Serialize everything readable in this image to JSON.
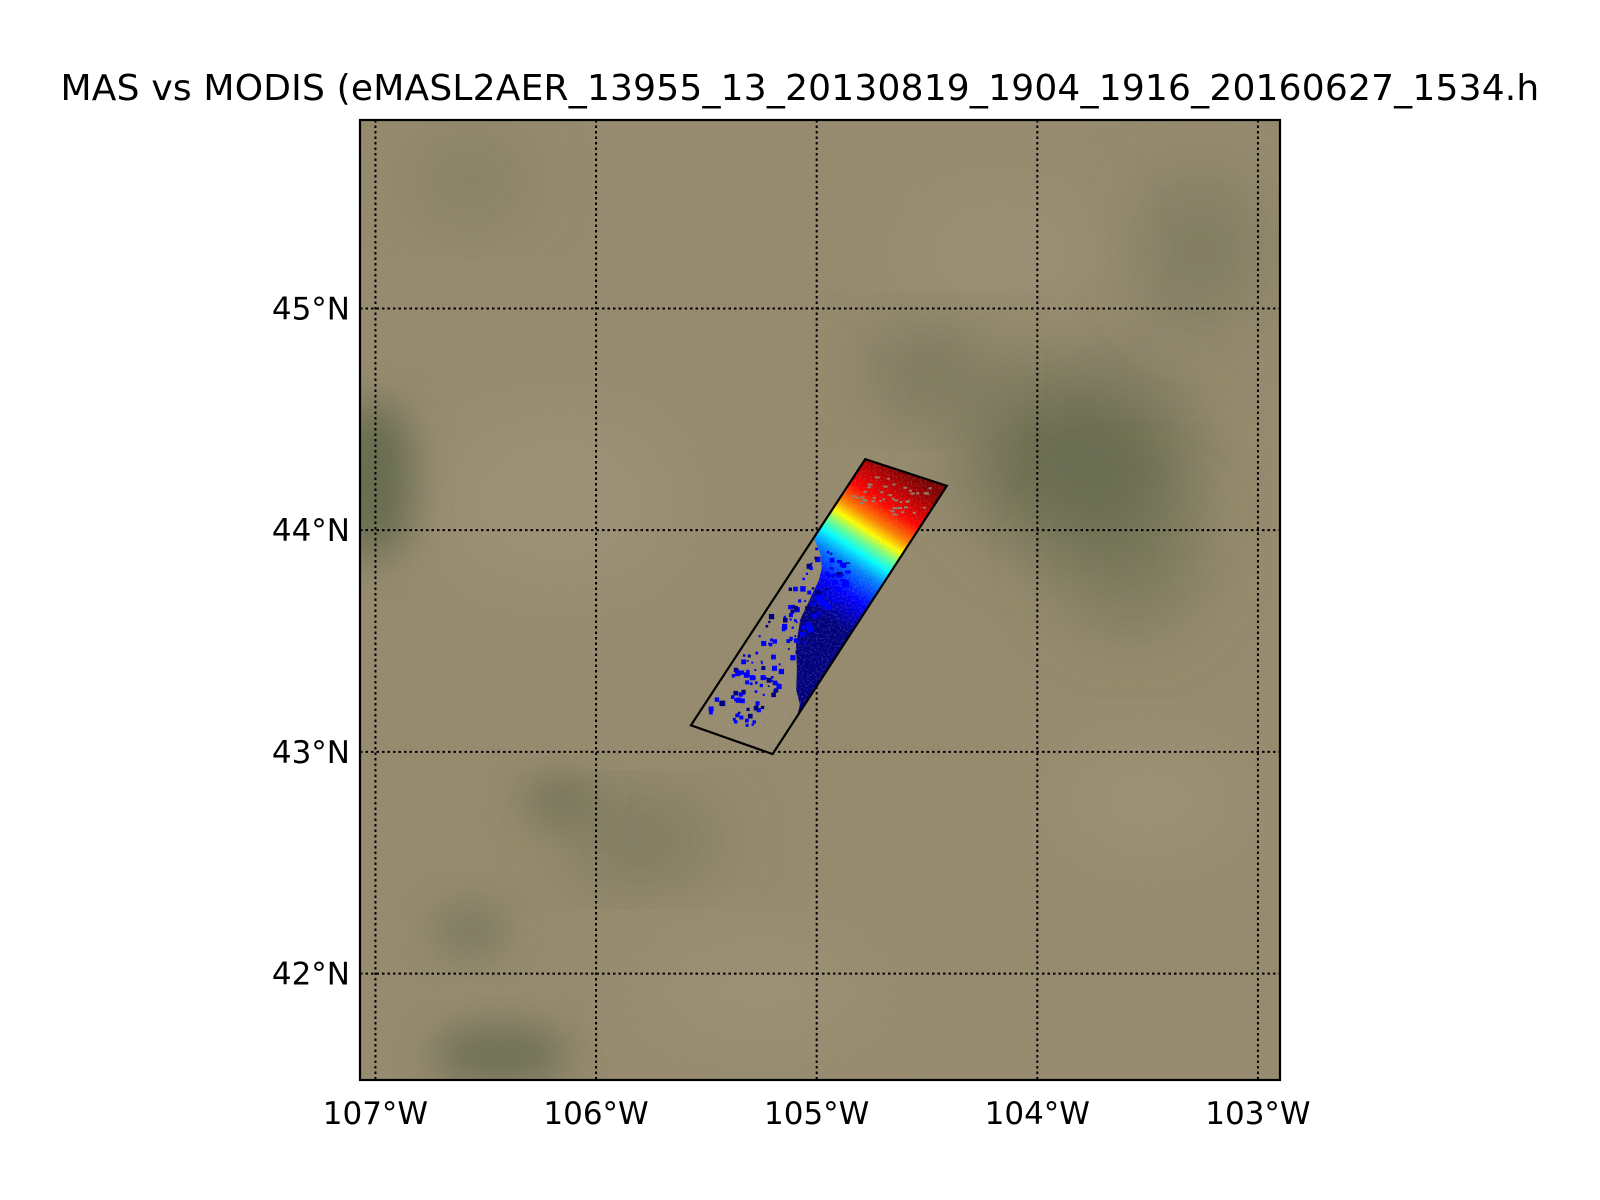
{
  "figure": {
    "title": "MAS vs MODIS (eMASL2AER_13955_13_20130819_1904_1916_20160627_1534.h"
  },
  "map": {
    "lon_range": [
      -107.07,
      -102.9
    ],
    "lat_range": [
      41.52,
      45.85
    ],
    "lon_ticks": [
      {
        "value": -107,
        "label": "107°W"
      },
      {
        "value": -106,
        "label": "106°W"
      },
      {
        "value": -105,
        "label": "105°W"
      },
      {
        "value": -104,
        "label": "104°W"
      },
      {
        "value": -103,
        "label": "103°W"
      }
    ],
    "lat_ticks": [
      {
        "value": 45,
        "label": "45°N"
      },
      {
        "value": 44,
        "label": "44°N"
      },
      {
        "value": 43,
        "label": "43°N"
      },
      {
        "value": 42,
        "label": "42°N"
      }
    ],
    "gridlines": true,
    "basemap_colors": {
      "base": "#978b6f",
      "dark_vegetation": "#5b6448",
      "light": "#a59b80"
    },
    "swath": {
      "corners": [
        [
          -104.78,
          44.32
        ],
        [
          -104.41,
          44.2
        ],
        [
          -105.2,
          42.99
        ],
        [
          -105.57,
          43.12
        ]
      ],
      "colormap": "jet",
      "colors": [
        "#00007f",
        "#0000ff",
        "#007fff",
        "#00ffff",
        "#7fff7f",
        "#ffff00",
        "#ff7f00",
        "#ff0000",
        "#7f0000"
      ]
    }
  }
}
